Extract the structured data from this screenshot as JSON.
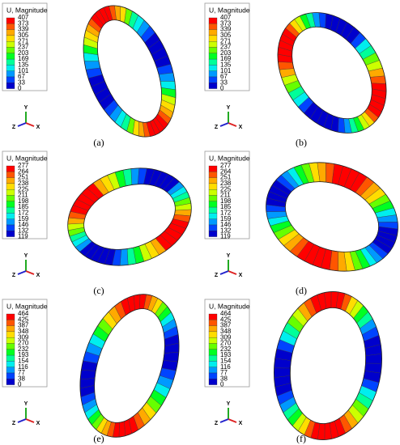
{
  "panels": [
    {
      "legend": {
        "title": "U, Magnitude",
        "values": [
          407,
          373,
          339,
          305,
          271,
          237,
          203,
          169,
          135,
          101,
          67,
          33,
          0
        ]
      },
      "axes": {
        "y": "Y",
        "z": "Z",
        "x": "X"
      },
      "label": "(a)"
    },
    {
      "legend": {
        "title": "U, Magnitude",
        "values": [
          407,
          373,
          339,
          305,
          271,
          237,
          203,
          169,
          135,
          101,
          67,
          33,
          0
        ]
      },
      "axes": {
        "y": "Y",
        "z": "Z",
        "x": "X"
      },
      "label": "(b)"
    },
    {
      "legend": {
        "title": "U, Magnitude",
        "values": [
          277,
          264,
          251,
          238,
          225,
          211,
          198,
          185,
          172,
          159,
          146,
          132,
          119
        ]
      },
      "axes": {
        "y": "Y",
        "z": "Z",
        "x": "X"
      },
      "label": "(c)"
    },
    {
      "legend": {
        "title": "U, Magnitude",
        "values": [
          277,
          264,
          251,
          238,
          225,
          211,
          198,
          185,
          172,
          159,
          146,
          132,
          119
        ]
      },
      "axes": {
        "y": "Y",
        "z": "Z",
        "x": "X"
      },
      "label": "(d)"
    },
    {
      "legend": {
        "title": "U, Magnitude",
        "values": [
          464,
          425,
          387,
          348,
          309,
          270,
          232,
          193,
          154,
          116,
          77,
          38,
          0
        ]
      },
      "axes": {
        "y": "Y",
        "z": "Z",
        "x": "X"
      },
      "label": "(e)"
    },
    {
      "legend": {
        "title": "U, Magnitude",
        "values": [
          464,
          425,
          387,
          348,
          309,
          270,
          232,
          193,
          154,
          116,
          77,
          38,
          0
        ]
      },
      "axes": {
        "y": "Y",
        "z": "Z",
        "x": "X"
      },
      "label": "(f)"
    }
  ]
}
